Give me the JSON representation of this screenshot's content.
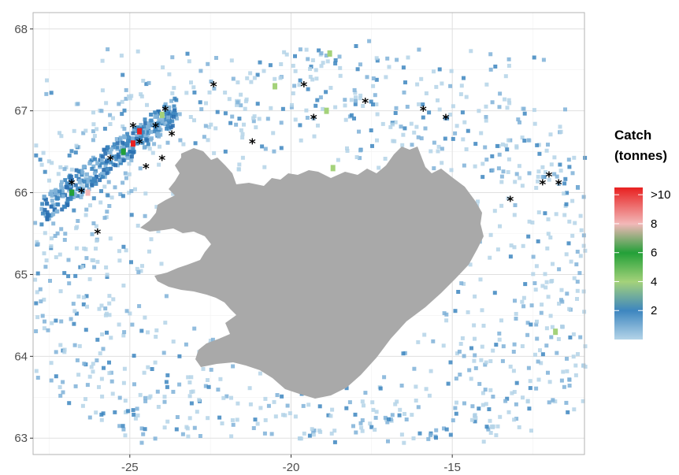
{
  "map": {
    "x_ticks": [
      {
        "value": -25,
        "label": "-25"
      },
      {
        "value": -20,
        "label": "-20"
      },
      {
        "value": -15,
        "label": "-15"
      }
    ],
    "y_ticks": [
      {
        "value": 68,
        "label": "68"
      },
      {
        "value": 67,
        "label": "67"
      },
      {
        "value": 66,
        "label": "66"
      },
      {
        "value": 65,
        "label": "65"
      },
      {
        "value": 64,
        "label": "64"
      },
      {
        "value": 63,
        "label": "63"
      }
    ],
    "xlim": [
      -28,
      -10.9
    ],
    "ylim": [
      62.8,
      68.2
    ],
    "grid": true,
    "land_color": "#a9a9a9",
    "panel_border_color": "#b3b3b3"
  },
  "legend": {
    "title_line1": "Catch",
    "title_line2": "(tonnes)",
    "labels": [
      {
        "value": 10,
        "label": ">10"
      },
      {
        "value": 8,
        "label": "8"
      },
      {
        "value": 6,
        "label": "6"
      },
      {
        "value": 4,
        "label": "4"
      },
      {
        "value": 2,
        "label": "2"
      }
    ],
    "range": [
      0,
      10.5
    ],
    "colors": [
      "#b4d4e8",
      "#3d86bf",
      "#a4d27a",
      "#23a038",
      "#f2b8b8",
      "#e82020"
    ],
    "placement": "right"
  },
  "chart_data": {
    "type": "heatmap",
    "xlabel": "",
    "ylabel": "",
    "high_catch_markers": [
      {
        "lon": -26.8,
        "lat": 66.1
      },
      {
        "lon": -26.5,
        "lat": 66.0
      },
      {
        "lon": -26.0,
        "lat": 65.5
      },
      {
        "lon": -25.6,
        "lat": 66.4
      },
      {
        "lon": -24.9,
        "lat": 66.8
      },
      {
        "lon": -24.7,
        "lat": 66.6
      },
      {
        "lon": -24.5,
        "lat": 66.3
      },
      {
        "lon": -24.2,
        "lat": 66.8
      },
      {
        "lon": -24.0,
        "lat": 66.4
      },
      {
        "lon": -23.9,
        "lat": 67.0
      },
      {
        "lon": -23.7,
        "lat": 66.7
      },
      {
        "lon": -22.4,
        "lat": 67.3
      },
      {
        "lon": -21.2,
        "lat": 66.6
      },
      {
        "lon": -19.6,
        "lat": 67.3
      },
      {
        "lon": -19.3,
        "lat": 66.9
      },
      {
        "lon": -17.7,
        "lat": 67.1
      },
      {
        "lon": -15.9,
        "lat": 67.0
      },
      {
        "lon": -15.2,
        "lat": 66.9
      },
      {
        "lon": -13.2,
        "lat": 65.9
      },
      {
        "lon": -12.2,
        "lat": 66.1
      },
      {
        "lon": -12.0,
        "lat": 66.2
      },
      {
        "lon": -11.7,
        "lat": 66.1
      }
    ],
    "catch_hotspots": [
      {
        "lon": -24.7,
        "lat": 66.75,
        "tonnes": 10.5
      },
      {
        "lon": -24.9,
        "lat": 66.6,
        "tonnes": 9
      },
      {
        "lon": -25.2,
        "lat": 66.5,
        "tonnes": 7
      },
      {
        "lon": -26.8,
        "lat": 66.0,
        "tonnes": 6
      },
      {
        "lon": -26.3,
        "lat": 66.0,
        "tonnes": 8
      },
      {
        "lon": -24.0,
        "lat": 66.95,
        "tonnes": 5
      },
      {
        "lon": -18.8,
        "lat": 67.7,
        "tonnes": 5
      },
      {
        "lon": -20.5,
        "lat": 67.3,
        "tonnes": 4.5
      },
      {
        "lon": -18.7,
        "lat": 66.3,
        "tonnes": 4
      },
      {
        "lon": -18.9,
        "lat": 67.0,
        "tonnes": 5
      },
      {
        "lon": -11.8,
        "lat": 64.3,
        "tonnes": 4
      }
    ]
  }
}
